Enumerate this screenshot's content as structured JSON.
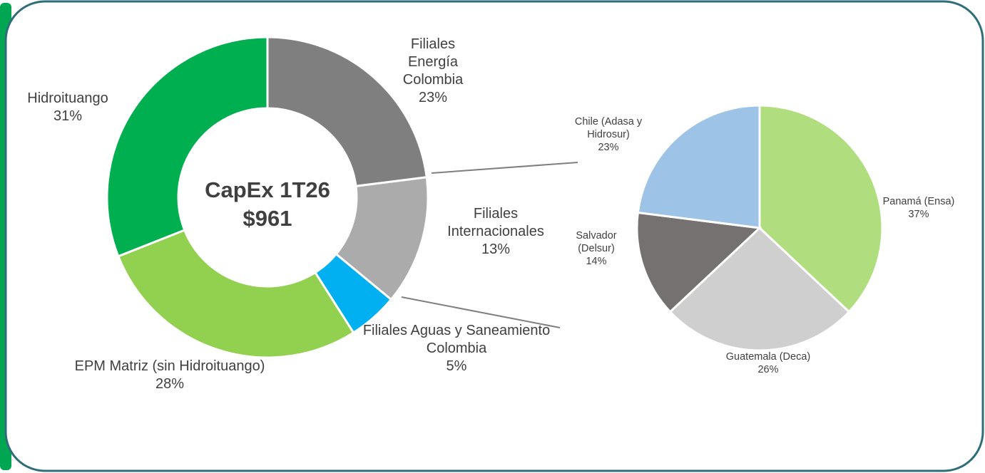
{
  "chart_data": [
    {
      "type": "donut",
      "title": "CapEx 1T26",
      "subtitle": "$961",
      "categories": [
        "Filiales Energía Colombia",
        "Filiales Internacionales",
        "Filiales Aguas y Saneamiento Colombia",
        "EPM Matriz (sin Hidroituango)",
        "Hidroituango"
      ],
      "values": [
        23,
        13,
        5,
        28,
        31
      ],
      "value_labels": [
        "23%",
        "13%",
        "5%",
        "28%",
        "31%"
      ],
      "colors": [
        "#7f7f7f",
        "#ababab",
        "#00b0f0",
        "#92d050",
        "#00b050"
      ]
    },
    {
      "type": "pie",
      "categories": [
        "Panamá (Ensa)",
        "Guatemala (Deca)",
        "Salvador (Delsur)",
        "Chile (Adasa y Hidrosur)"
      ],
      "values": [
        37,
        26,
        14,
        23
      ],
      "value_labels": [
        "37%",
        "26%",
        "14%",
        "23%"
      ],
      "colors": [
        "#b0dd7e",
        "#d0cfcf",
        "#767171",
        "#9dc3e6"
      ]
    }
  ]
}
